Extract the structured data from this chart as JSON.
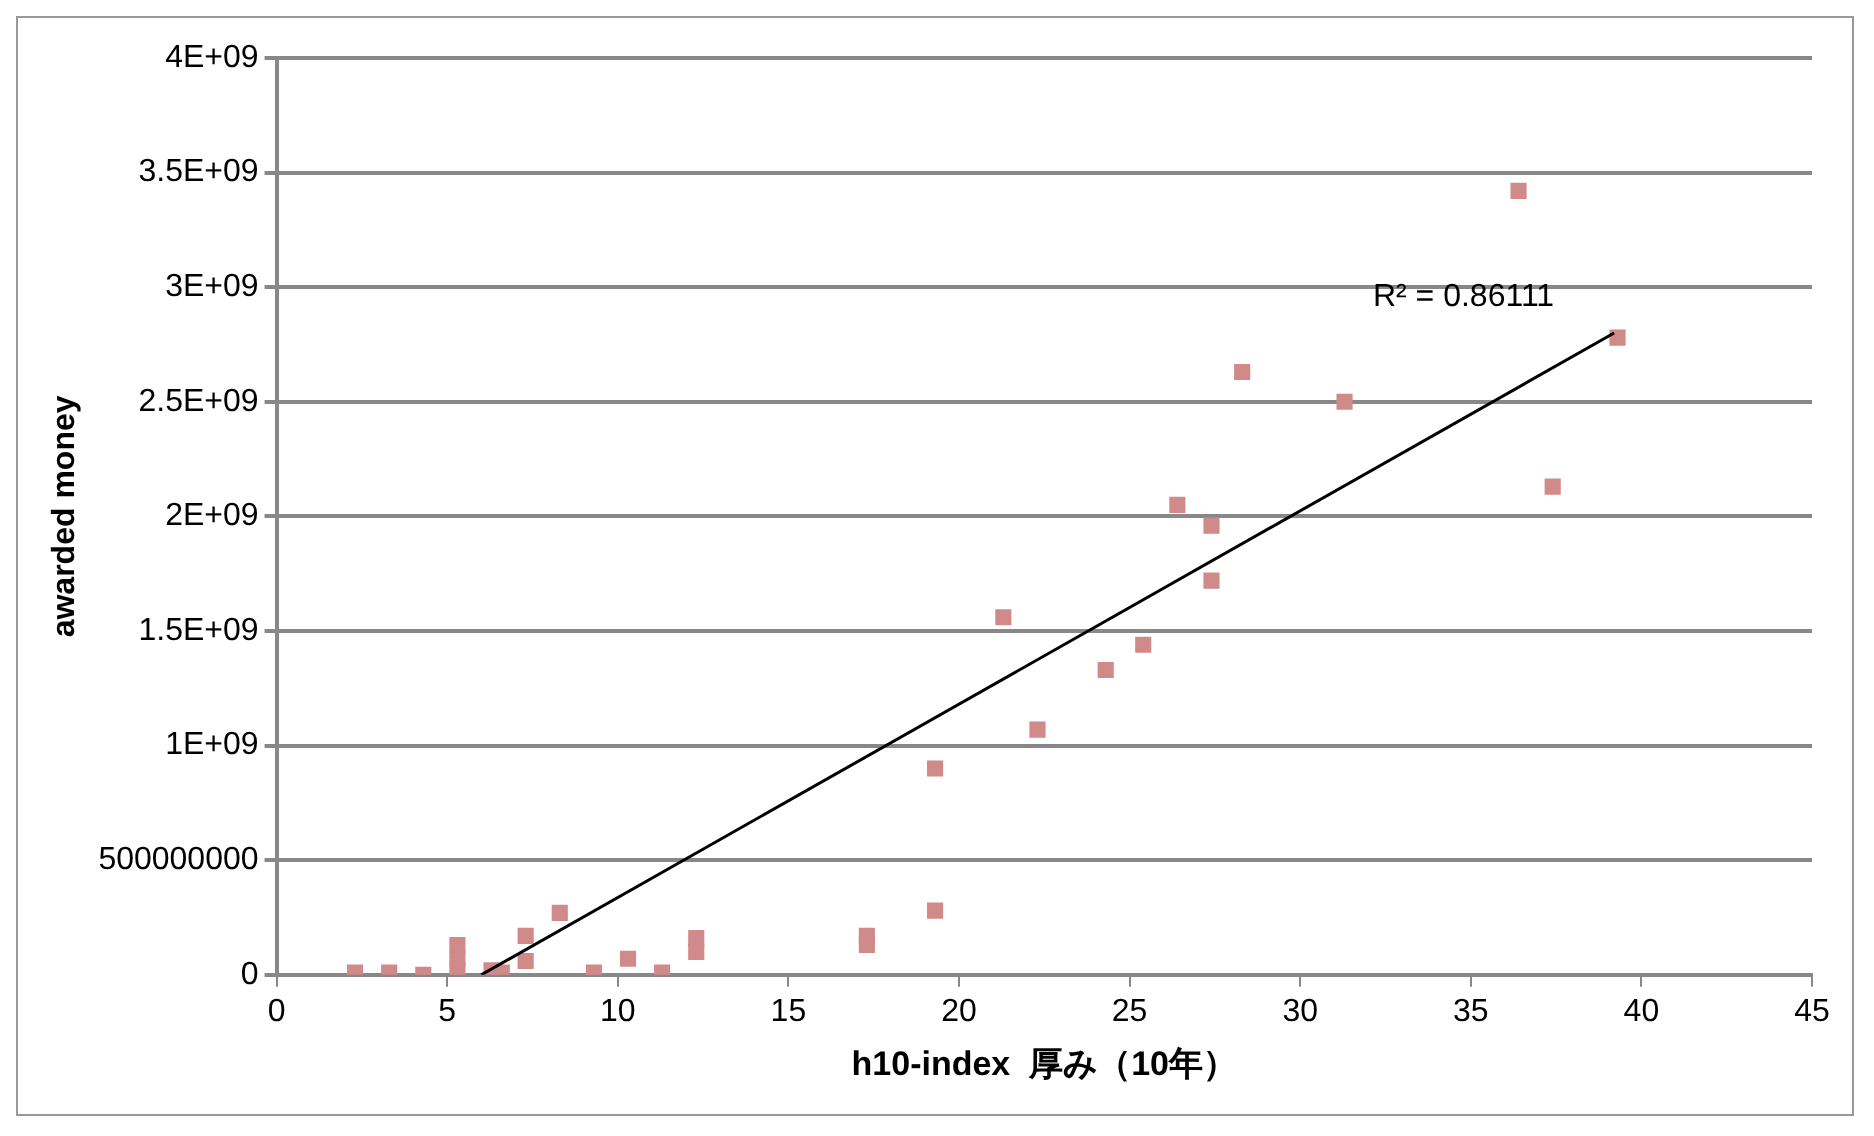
{
  "chart_data": {
    "type": "scatter",
    "xlabel": "h10-index  厚み（10年）",
    "ylabel": "awarded money",
    "xlim": [
      0,
      45
    ],
    "xticks": [
      0,
      5,
      10,
      15,
      20,
      25,
      30,
      35,
      40,
      45
    ],
    "ylim": [
      0,
      4000000000
    ],
    "yticks": [
      0,
      500000000,
      {
        "value": 1000000000,
        "label": "1E+09"
      },
      {
        "value": 1500000000,
        "label": "1.5E+09"
      },
      {
        "value": 2000000000,
        "label": "2E+09"
      },
      {
        "value": 2500000000,
        "label": "2.5E+09"
      },
      {
        "value": 3000000000,
        "label": "3E+09"
      },
      {
        "value": 3500000000,
        "label": "3.5E+09"
      },
      {
        "value": 4000000000,
        "label": "4E+09"
      }
    ],
    "grid": "y",
    "legend": false,
    "series": [
      {
        "marker": "square",
        "color": "#d08a8a",
        "x": [
          36.4,
          39.3,
          28.3,
          31.3,
          37.4,
          26.4,
          27.4,
          27.4,
          21.3,
          25.4,
          24.3,
          22.3,
          19.3,
          19.3,
          17.3,
          17.3,
          12.3,
          12.3,
          8.3,
          7.3,
          7.3,
          5.3,
          5.3,
          5.3,
          10.3,
          11.3,
          9.3,
          2.3,
          3.3,
          4.3,
          6.3,
          6.6
        ],
        "values": [
          3420000000,
          2780000000,
          2630000000,
          2500000000,
          2130000000,
          2050000000,
          1960000000,
          1720000000,
          1560000000,
          1440000000,
          1330000000,
          1070000000,
          900000000,
          280000000,
          170000000,
          130000000,
          160000000,
          100000000,
          270000000,
          170000000,
          60000000,
          130000000,
          70000000,
          20000000,
          70000000,
          10000000,
          10000000,
          10000000,
          10000000,
          0,
          20000000,
          10000000
        ]
      },
      {
        "type": "line",
        "color": "#000000",
        "x": [
          6.0,
          39.2
        ],
        "values": [
          0,
          2800000000
        ]
      }
    ],
    "annotations": [
      "R² = 0.86111"
    ]
  }
}
